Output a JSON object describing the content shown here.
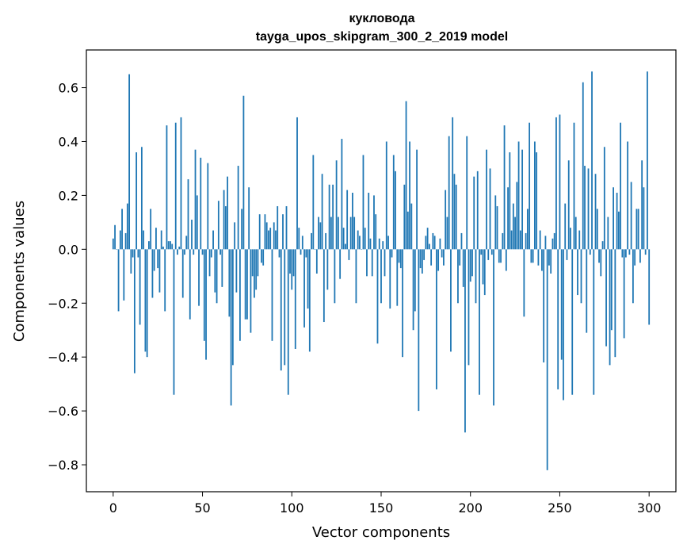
{
  "chart_data": {
    "type": "bar",
    "title_line1": "кукловода",
    "title_line2": "tayga_upos_skipgram_300_2_2019 model",
    "xlabel": "Vector components",
    "ylabel": "Components values",
    "xlim": [
      -15,
      315
    ],
    "ylim": [
      -0.9,
      0.74
    ],
    "xticks": [
      0,
      50,
      100,
      150,
      200,
      250,
      300
    ],
    "xtick_labels": [
      "0",
      "50",
      "100",
      "150",
      "200",
      "250",
      "300"
    ],
    "yticks": [
      -0.8,
      -0.6,
      -0.4,
      -0.2,
      0.0,
      0.2,
      0.4,
      0.6
    ],
    "ytick_labels": [
      "−0.8",
      "−0.6",
      "−0.4",
      "−0.2",
      "0.0",
      "0.2",
      "0.4",
      "0.6"
    ],
    "bar_color": "#1f77b4",
    "values": [
      0.04,
      0.09,
      0.0,
      -0.23,
      0.07,
      0.15,
      -0.19,
      0.06,
      0.17,
      0.65,
      -0.09,
      -0.03,
      -0.46,
      0.36,
      -0.03,
      -0.28,
      0.38,
      0.07,
      -0.38,
      -0.4,
      0.03,
      0.15,
      -0.18,
      -0.08,
      0.08,
      -0.07,
      -0.16,
      0.07,
      0.01,
      -0.23,
      0.46,
      0.03,
      0.03,
      0.02,
      -0.54,
      0.47,
      -0.02,
      0.01,
      0.49,
      -0.18,
      -0.02,
      0.05,
      0.26,
      -0.26,
      0.11,
      -0.02,
      0.37,
      0.2,
      -0.21,
      0.34,
      -0.02,
      -0.34,
      -0.41,
      0.32,
      -0.1,
      -0.03,
      0.07,
      -0.16,
      -0.2,
      0.18,
      -0.02,
      -0.14,
      0.22,
      0.16,
      0.27,
      -0.25,
      -0.58,
      -0.43,
      0.1,
      -0.16,
      0.31,
      -0.34,
      0.15,
      0.57,
      -0.26,
      -0.26,
      0.23,
      -0.31,
      -0.1,
      -0.18,
      -0.15,
      -0.1,
      0.13,
      -0.05,
      -0.06,
      0.13,
      0.1,
      0.07,
      0.08,
      -0.34,
      0.1,
      0.07,
      0.16,
      -0.03,
      -0.45,
      0.13,
      -0.43,
      0.16,
      -0.54,
      -0.09,
      -0.15,
      -0.1,
      -0.37,
      0.49,
      0.08,
      -0.02,
      0.05,
      -0.29,
      -0.03,
      -0.22,
      -0.38,
      0.06,
      0.35,
      0.0,
      -0.09,
      0.12,
      0.1,
      0.28,
      -0.27,
      0.06,
      -0.15,
      0.24,
      0.12,
      0.24,
      -0.2,
      0.33,
      0.12,
      -0.11,
      0.41,
      0.08,
      0.02,
      0.22,
      -0.04,
      0.12,
      0.21,
      0.12,
      -0.2,
      0.07,
      0.05,
      0.0,
      0.35,
      0.08,
      -0.1,
      0.21,
      0.04,
      -0.1,
      0.2,
      0.13,
      -0.35,
      0.04,
      -0.2,
      0.03,
      -0.1,
      0.4,
      0.05,
      -0.22,
      -0.03,
      0.35,
      0.29,
      -0.21,
      -0.05,
      -0.07,
      -0.4,
      0.24,
      0.55,
      0.14,
      0.4,
      0.17,
      -0.3,
      -0.23,
      0.37,
      -0.6,
      -0.07,
      -0.09,
      -0.04,
      0.05,
      0.08,
      0.02,
      -0.06,
      0.06,
      0.05,
      -0.52,
      -0.08,
      0.04,
      -0.03,
      -0.06,
      0.22,
      0.12,
      0.42,
      -0.38,
      0.49,
      0.28,
      0.24,
      -0.2,
      -0.06,
      0.06,
      -0.14,
      -0.68,
      0.42,
      -0.43,
      -0.12,
      -0.1,
      0.27,
      -0.2,
      0.29,
      -0.54,
      -0.02,
      -0.13,
      -0.17,
      0.37,
      -0.04,
      0.3,
      -0.02,
      -0.58,
      0.2,
      0.16,
      -0.05,
      -0.05,
      0.06,
      0.46,
      -0.08,
      0.23,
      0.36,
      0.07,
      0.17,
      0.12,
      0.25,
      0.4,
      0.07,
      0.37,
      -0.25,
      0.06,
      0.15,
      0.47,
      -0.05,
      -0.05,
      0.4,
      0.36,
      -0.06,
      0.07,
      -0.08,
      -0.42,
      0.05,
      -0.82,
      -0.06,
      -0.09,
      0.04,
      0.06,
      0.49,
      -0.52,
      0.5,
      -0.41,
      -0.56,
      0.17,
      -0.04,
      0.33,
      0.08,
      -0.54,
      0.47,
      0.12,
      -0.17,
      0.07,
      -0.2,
      0.62,
      0.31,
      -0.31,
      0.3,
      -0.02,
      0.66,
      -0.54,
      0.28,
      0.15,
      -0.05,
      -0.1,
      0.03,
      0.38,
      -0.36,
      0.12,
      -0.43,
      -0.3,
      0.23,
      -0.4,
      0.21,
      0.14,
      0.47,
      -0.03,
      -0.33,
      -0.03,
      0.4,
      -0.02,
      0.25,
      -0.2,
      -0.06,
      0.15,
      0.15,
      -0.05,
      0.33,
      0.23,
      -0.02,
      0.66,
      -0.28
    ]
  }
}
